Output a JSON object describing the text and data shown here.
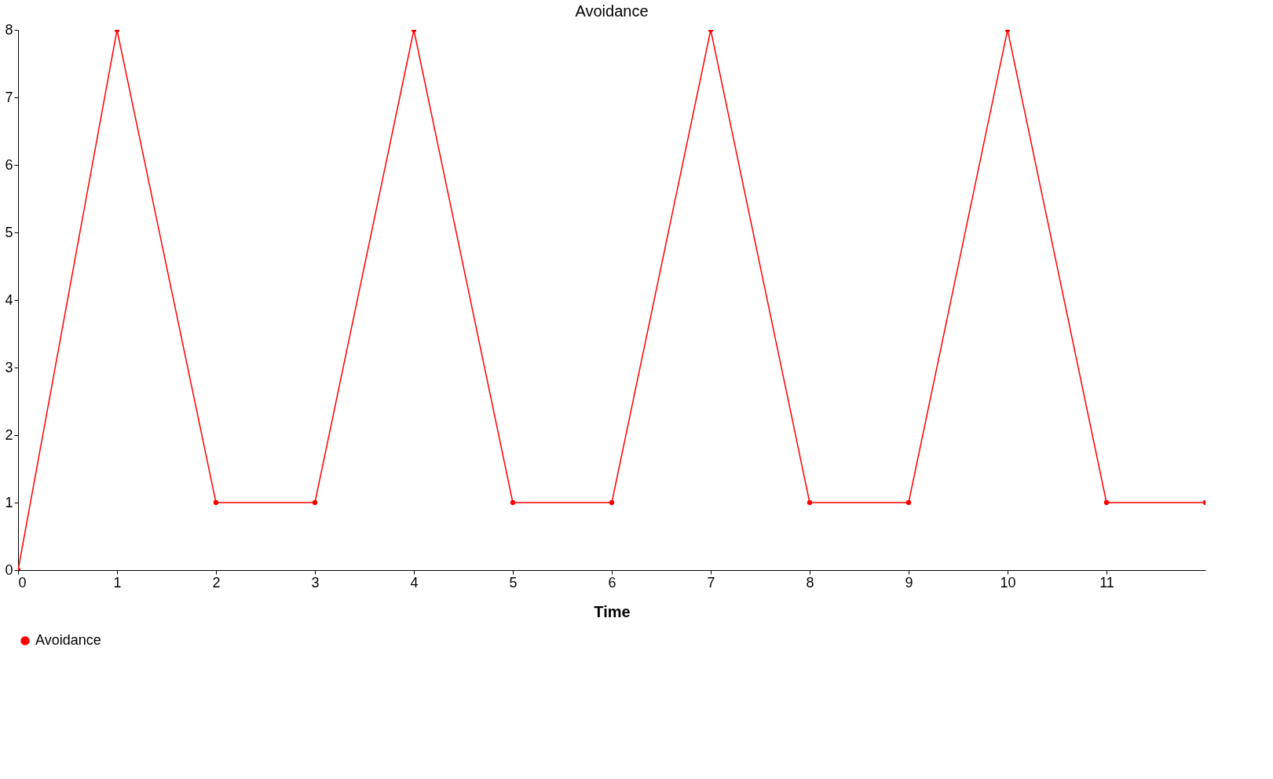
{
  "chart_data": {
    "type": "line",
    "title": "Avoidance",
    "xlabel": "Time",
    "x": [
      0,
      1,
      2,
      3,
      4,
      5,
      6,
      7,
      8,
      9,
      10,
      11,
      12
    ],
    "series": [
      {
        "name": "Avoidance",
        "color": "#ff0000",
        "values": [
          0,
          8,
          1,
          1,
          8,
          1,
          1,
          8,
          1,
          1,
          8,
          1,
          1
        ]
      }
    ],
    "xlim": [
      0,
      12
    ],
    "xticks": [
      0,
      1,
      2,
      3,
      4,
      5,
      6,
      7,
      8,
      9,
      10,
      11
    ],
    "ylim": [
      0,
      8
    ],
    "yticks": [
      0,
      1,
      2,
      3,
      4,
      5,
      6,
      7,
      8
    ],
    "grid": false,
    "legend": "bottom",
    "marker": "circle",
    "line_style": "solid"
  }
}
